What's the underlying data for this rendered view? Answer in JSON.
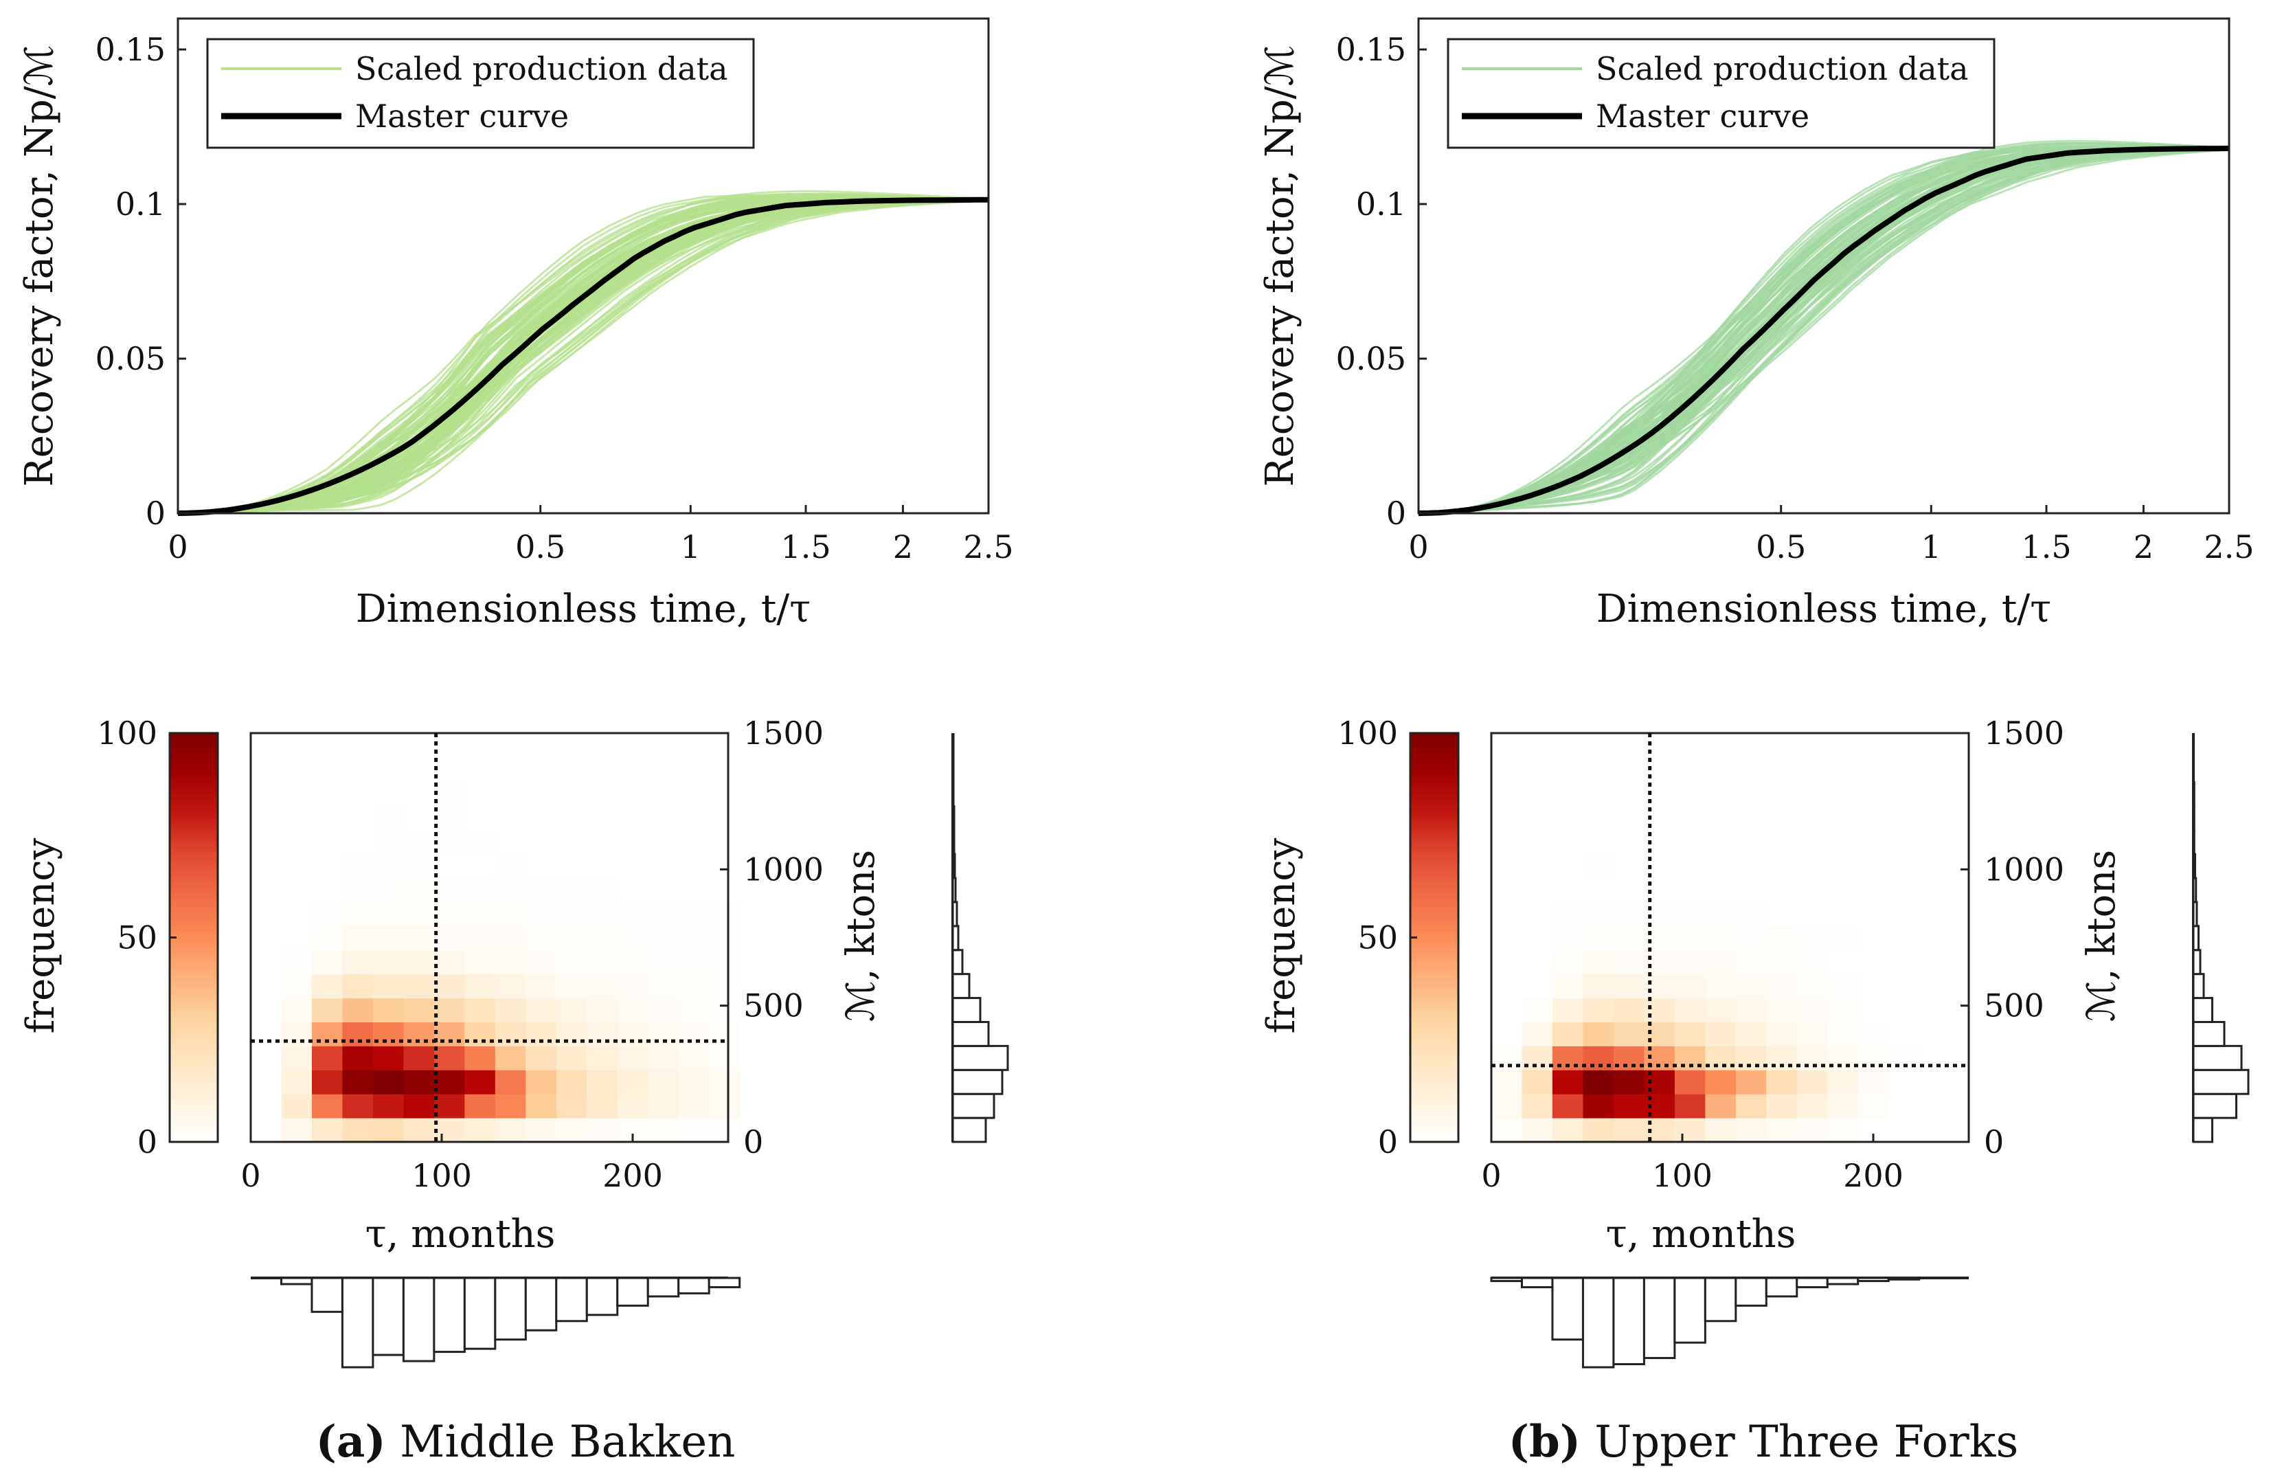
{
  "chart_data": [
    {
      "panel": "a",
      "type": "line",
      "xlabel": "Dimensionless time,  t/τ",
      "ylabel": "Recovery factor,  Np/ℳ",
      "x_ticks": [
        "0",
        "0.5",
        "1",
        "1.5",
        "2",
        "2.5"
      ],
      "y_ticks": [
        "0",
        "0.05",
        "0.1",
        "0.15"
      ],
      "xlim": [
        0,
        2.5
      ],
      "ylim": [
        0,
        0.16
      ],
      "legend_position": "top-left",
      "series": [
        {
          "name": "Scaled production data",
          "color": "#b4e08c",
          "x": [
            0,
            0.1,
            0.2,
            0.3,
            0.4,
            0.5,
            0.6,
            0.7,
            0.8,
            0.9,
            1.0,
            1.2,
            1.4,
            1.6,
            1.8,
            2.0,
            2.2,
            2.5
          ],
          "y": [
            0,
            0.008,
            0.02,
            0.034,
            0.05,
            0.06,
            0.069,
            0.077,
            0.083,
            0.088,
            0.092,
            0.097,
            0.0995,
            0.1005,
            0.101,
            0.1012,
            0.1013,
            0.1014
          ],
          "spread": 0.013
        },
        {
          "name": "Master curve",
          "color": "#000000",
          "x": [
            0,
            0.1,
            0.2,
            0.3,
            0.4,
            0.5,
            0.6,
            0.7,
            0.8,
            0.9,
            1.0,
            1.2,
            1.4,
            1.6,
            1.8,
            2.0,
            2.2,
            2.5
          ],
          "y": [
            0,
            0.011,
            0.022,
            0.035,
            0.048,
            0.059,
            0.068,
            0.076,
            0.083,
            0.088,
            0.092,
            0.097,
            0.0995,
            0.1005,
            0.101,
            0.1012,
            0.1013,
            0.1014
          ]
        }
      ]
    },
    {
      "panel": "b",
      "type": "line",
      "xlabel": "Dimensionless time,  t/τ",
      "ylabel": "Recovery factor,  Np/ℳ",
      "x_ticks": [
        "0",
        "0.5",
        "1",
        "1.5",
        "2",
        "2.5"
      ],
      "y_ticks": [
        "0",
        "0.05",
        "0.1",
        "0.15"
      ],
      "xlim": [
        0,
        2.5
      ],
      "ylim": [
        0,
        0.16
      ],
      "legend_position": "top-left",
      "series": [
        {
          "name": "Scaled production data",
          "color": "#a2d8a0",
          "x": [
            0,
            0.1,
            0.2,
            0.3,
            0.4,
            0.5,
            0.6,
            0.7,
            0.8,
            0.9,
            1.0,
            1.2,
            1.4,
            1.6,
            1.8,
            2.0,
            2.2,
            2.5
          ],
          "y": [
            0,
            0.012,
            0.025,
            0.039,
            0.053,
            0.065,
            0.076,
            0.085,
            0.092,
            0.098,
            0.103,
            0.11,
            0.1145,
            0.1165,
            0.1173,
            0.1177,
            0.1179,
            0.118
          ],
          "spread": 0.015
        },
        {
          "name": "Master curve",
          "color": "#000000",
          "x": [
            0,
            0.1,
            0.2,
            0.3,
            0.4,
            0.5,
            0.6,
            0.7,
            0.8,
            0.9,
            1.0,
            1.2,
            1.4,
            1.6,
            1.8,
            2.0,
            2.2,
            2.5
          ],
          "y": [
            0,
            0.012,
            0.025,
            0.039,
            0.053,
            0.065,
            0.076,
            0.085,
            0.092,
            0.098,
            0.103,
            0.11,
            0.1145,
            0.1165,
            0.1173,
            0.1177,
            0.1179,
            0.118
          ]
        }
      ]
    },
    {
      "panel": "a",
      "type": "heatmap",
      "xlabel": "τ, months",
      "ylabel": "ℳ, ktons",
      "colorbar_label": "frequency",
      "colorbar_ticks": [
        "0",
        "50",
        "100"
      ],
      "colorbar_range": [
        0,
        100
      ],
      "x_ticks": [
        "0",
        "100",
        "200"
      ],
      "y_ticks": [
        "0",
        "500",
        "1000",
        "1500"
      ],
      "xlim": [
        0,
        250
      ],
      "ylim": [
        0,
        1500
      ],
      "bin_x_edges": [
        16,
        32,
        48,
        64,
        80,
        96,
        112,
        128,
        144,
        160,
        176,
        192,
        208,
        224,
        240,
        256
      ],
      "bin_y_edges": [
        0,
        88,
        176,
        264,
        352,
        440,
        528,
        616,
        704,
        792,
        880,
        968,
        1056,
        1144,
        1232,
        1320,
        1408,
        1496
      ],
      "counts": [
        [
          6,
          16,
          22,
          24,
          18,
          14,
          12,
          8,
          6,
          4,
          3,
          2,
          2,
          1,
          1
        ],
        [
          14,
          56,
          76,
          80,
          84,
          80,
          58,
          52,
          32,
          22,
          16,
          10,
          8,
          6,
          4
        ],
        [
          10,
          78,
          96,
          100,
          96,
          92,
          84,
          56,
          34,
          24,
          16,
          12,
          8,
          6,
          4
        ],
        [
          8,
          72,
          88,
          84,
          76,
          68,
          54,
          34,
          22,
          16,
          12,
          8,
          6,
          4,
          2
        ],
        [
          6,
          44,
          60,
          54,
          46,
          40,
          28,
          20,
          16,
          10,
          8,
          6,
          4,
          3,
          2
        ],
        [
          4,
          26,
          36,
          32,
          30,
          26,
          20,
          14,
          10,
          8,
          6,
          4,
          3,
          2,
          1
        ],
        [
          2,
          12,
          18,
          16,
          16,
          14,
          10,
          8,
          6,
          4,
          4,
          3,
          2,
          2,
          1
        ],
        [
          1,
          4,
          8,
          8,
          8,
          6,
          4,
          4,
          3,
          2,
          2,
          2,
          1,
          1,
          1
        ],
        [
          0,
          2,
          4,
          4,
          4,
          3,
          3,
          3,
          2,
          2,
          2,
          1,
          1,
          1,
          1
        ],
        [
          0,
          1,
          2,
          2,
          2,
          2,
          2,
          2,
          1,
          1,
          1,
          1,
          1,
          1,
          1
        ],
        [
          0,
          0,
          1,
          1,
          2,
          1,
          1,
          1,
          1,
          1,
          1,
          0,
          0,
          0,
          0
        ],
        [
          0,
          0,
          1,
          1,
          1,
          0,
          0,
          1,
          0,
          0,
          0,
          0,
          0,
          0,
          0
        ],
        [
          0,
          0,
          0,
          1,
          1,
          1,
          1,
          0,
          0,
          0,
          0,
          0,
          0,
          0,
          0
        ],
        [
          0,
          0,
          0,
          1,
          0,
          1,
          0,
          0,
          0,
          0,
          0,
          0,
          0,
          0,
          0
        ],
        [
          0,
          0,
          0,
          0,
          0,
          1,
          0,
          0,
          0,
          0,
          0,
          0,
          0,
          0,
          0
        ],
        [
          0,
          0,
          0,
          0,
          0,
          0,
          0,
          0,
          0,
          0,
          0,
          0,
          0,
          0,
          0
        ],
        [
          0,
          0,
          0,
          0,
          0,
          0,
          0,
          0,
          0,
          0,
          0,
          0,
          0,
          0,
          0
        ]
      ],
      "median_tau": 97,
      "median_M": 370,
      "tau_histogram": [
        4,
        22,
        58,
        50,
        54,
        48,
        46,
        40,
        34,
        28,
        24,
        18,
        12,
        10,
        6
      ],
      "M_histogram": [
        48,
        60,
        72,
        80,
        52,
        40,
        24,
        14,
        8,
        6,
        4,
        3,
        2,
        2,
        1,
        1,
        1
      ]
    },
    {
      "panel": "b",
      "type": "heatmap",
      "xlabel": "τ, months",
      "ylabel": "ℳ, ktons",
      "colorbar_label": "frequency",
      "colorbar_ticks": [
        "0",
        "50",
        "100"
      ],
      "colorbar_range": [
        0,
        100
      ],
      "x_ticks": [
        "0",
        "100",
        "200"
      ],
      "y_ticks": [
        "0",
        "500",
        "1000",
        "1500"
      ],
      "xlim": [
        0,
        250
      ],
      "ylim": [
        0,
        1500
      ],
      "bin_x_edges": [
        0,
        16,
        32,
        48,
        64,
        80,
        96,
        112,
        128,
        144,
        160,
        176,
        192,
        208,
        224
      ],
      "bin_y_edges": [
        0,
        88,
        176,
        264,
        352,
        440,
        528,
        616,
        704,
        792,
        880,
        968,
        1056,
        1144,
        1232,
        1320
      ],
      "counts": [
        [
          2,
          6,
          12,
          20,
          18,
          18,
          14,
          8,
          6,
          4,
          3,
          2,
          0,
          0
        ],
        [
          4,
          18,
          72,
          90,
          84,
          84,
          74,
          40,
          24,
          14,
          10,
          6,
          2,
          0
        ],
        [
          4,
          22,
          84,
          100,
          96,
          88,
          62,
          50,
          40,
          24,
          14,
          8,
          3,
          0
        ],
        [
          2,
          14,
          58,
          64,
          58,
          46,
          34,
          20,
          16,
          10,
          6,
          4,
          2,
          1
        ],
        [
          0,
          6,
          22,
          32,
          26,
          26,
          20,
          14,
          10,
          6,
          4,
          2,
          1,
          0
        ],
        [
          0,
          2,
          10,
          16,
          18,
          14,
          10,
          8,
          6,
          4,
          3,
          2,
          0,
          0
        ],
        [
          0,
          0,
          4,
          8,
          8,
          6,
          6,
          4,
          4,
          3,
          2,
          1,
          0,
          0
        ],
        [
          0,
          0,
          2,
          4,
          3,
          3,
          3,
          3,
          2,
          2,
          1,
          0,
          0,
          0
        ],
        [
          0,
          0,
          1,
          2,
          2,
          2,
          2,
          2,
          1,
          2,
          1,
          1,
          0,
          0
        ],
        [
          0,
          0,
          1,
          1,
          1,
          1,
          1,
          1,
          1,
          0,
          0,
          0,
          0,
          0
        ],
        [
          0,
          0,
          0,
          0,
          0,
          0,
          0,
          0,
          0,
          0,
          0,
          0,
          0,
          0
        ],
        [
          0,
          0,
          0,
          1,
          0,
          0,
          0,
          0,
          0,
          0,
          0,
          0,
          0,
          0
        ],
        [
          0,
          0,
          0,
          0,
          0,
          0,
          0,
          0,
          0,
          0,
          0,
          0,
          0,
          0
        ],
        [
          0,
          0,
          0,
          0,
          0,
          0,
          0,
          0,
          0,
          0,
          0,
          0,
          0,
          0
        ],
        [
          0,
          0,
          0,
          0,
          0,
          0,
          0,
          0,
          0,
          0,
          0,
          0,
          0,
          0
        ]
      ],
      "median_tau": 83,
      "median_M": 280,
      "tau_histogram": [
        2,
        6,
        40,
        58,
        56,
        52,
        42,
        28,
        18,
        12,
        6,
        4,
        2,
        1
      ],
      "M_histogram": [
        22,
        50,
        64,
        56,
        36,
        22,
        12,
        8,
        6,
        4,
        3,
        2,
        1,
        1,
        1
      ]
    }
  ],
  "captions": [
    {
      "letter": "(a)",
      "text": "Middle Bakken"
    },
    {
      "letter": "(b)",
      "text": "Upper Three Forks"
    }
  ]
}
